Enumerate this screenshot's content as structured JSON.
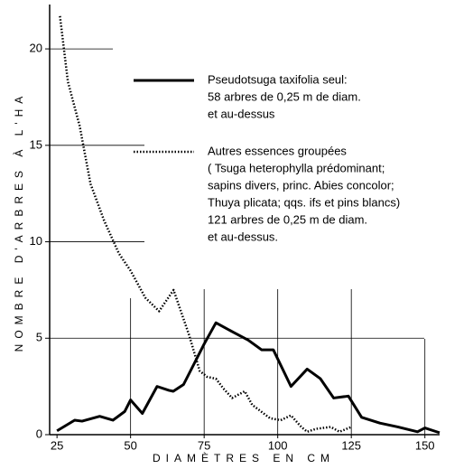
{
  "chart_data": {
    "type": "line",
    "ylabel": "NOMBRE D'ARBRES À L'HA",
    "xlabel": "DIAMÈTRES EN CM",
    "xlim": [
      22.5,
      155
    ],
    "xticks": [
      25,
      50,
      75,
      100,
      125,
      150
    ],
    "ylim": [
      0,
      22.3
    ],
    "yticks": [
      0,
      5,
      10,
      15,
      20
    ],
    "grid": true,
    "series": [
      {
        "name": "Pseudotsuga taxifolia seul:",
        "lines": [
          "58 arbres de 0,25 m de diam.",
          "et au-dessus"
        ],
        "style": "solid",
        "color": "#000000",
        "x": [
          25,
          31,
          33.5,
          39.5,
          44,
          48,
          50,
          54,
          59,
          63,
          64.5,
          68,
          75,
          79,
          85,
          90,
          94.5,
          98.5,
          104.5,
          110,
          114.5,
          119,
          124,
          128.5,
          134.7,
          140.8,
          147.5,
          150,
          155
        ],
        "values": [
          0.2,
          0.75,
          0.7,
          0.95,
          0.75,
          1.2,
          1.8,
          1.1,
          2.5,
          2.3,
          2.25,
          2.6,
          4.7,
          5.8,
          5.3,
          4.9,
          4.4,
          4.4,
          2.5,
          3.4,
          2.9,
          1.9,
          2.0,
          0.9,
          0.6,
          0.4,
          0.15,
          0.35,
          0.1
        ]
      },
      {
        "name": "Autres essences groupées",
        "lines": [
          "( Tsuga heterophylla prédominant;",
          "sapins divers, princ. Abies concolor;",
          "Thuya plicata; qqs. ifs et pins blancs)",
          "121 arbres de 0,25 m de diam.",
          "et au-dessus."
        ],
        "style": "dotted",
        "color": "#000000",
        "x": [
          26,
          28.7,
          32.7,
          36.4,
          41,
          46,
          50,
          55,
          59.7,
          64.6,
          69.8,
          73.5,
          76,
          79,
          81.5,
          84.5,
          88.8,
          91.3,
          97.4,
          101,
          104.5,
          108,
          110,
          113,
          118,
          121,
          125
        ],
        "values": [
          21.7,
          18.3,
          16.0,
          13.0,
          11.1,
          9.4,
          8.5,
          7.1,
          6.4,
          7.5,
          5.2,
          3.3,
          3.0,
          2.9,
          2.4,
          1.9,
          2.25,
          1.55,
          0.85,
          0.75,
          1.0,
          0.4,
          0.15,
          0.3,
          0.4,
          0.15,
          0.4
        ]
      }
    ]
  }
}
